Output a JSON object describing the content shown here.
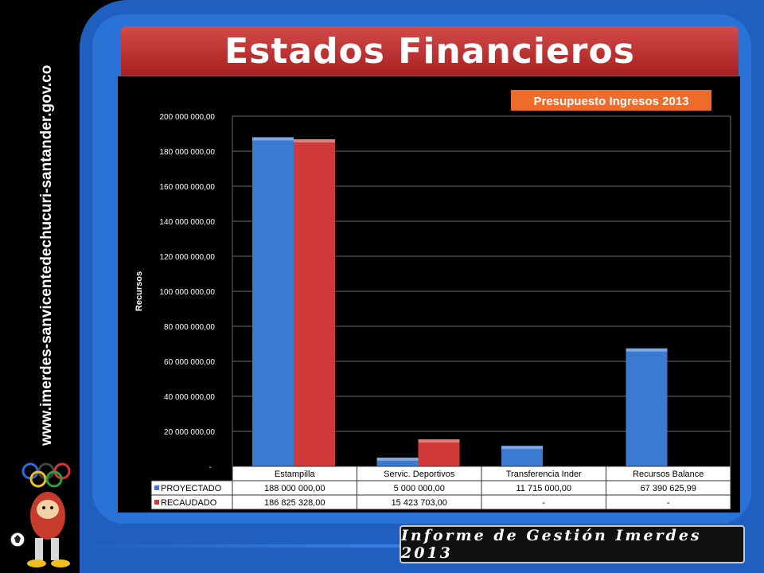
{
  "header": {
    "title": "Estados Financieros"
  },
  "side_url": "www.imerdes-sanvicentedechucuri-santander.gov.co",
  "footer": {
    "text": "Informe de Gestión Imerdes 2013"
  },
  "colors": {
    "proyectado": "#3b7ad1",
    "recaudado": "#d03a3a",
    "title_red": "#c03030",
    "frame_blue": "#2a72d6",
    "badge": "#ef6b2a"
  },
  "chart_data": {
    "type": "bar",
    "title": "Presupuesto Ingresos 2013",
    "ylabel": "Recursos",
    "xlabel": "",
    "categories": [
      "Estampilla",
      "Servic. Deportivos",
      "Transferencia Inder",
      "Recursos Balance"
    ],
    "series": [
      {
        "name": "PROYECTADO",
        "values": [
          188000000,
          5000000,
          11715000,
          67390625.99
        ],
        "labels": [
          "188 000 000,00",
          "5 000 000,00",
          "11 715 000,00",
          "67 390 625,99"
        ]
      },
      {
        "name": "RECAUDADO",
        "values": [
          186825328,
          15423703,
          0,
          0
        ],
        "labels": [
          "186 825 328,00",
          "15 423 703,00",
          "-",
          "-"
        ]
      }
    ],
    "ylim": [
      0,
      200000000
    ],
    "yticks": [
      "-",
      "20 000 000,00",
      "40 000 000,00",
      "60 000 000,00",
      "80 000 000,00",
      "100 000 000,00",
      "120 000 000,00",
      "140 000 000,00",
      "160 000 000,00",
      "180 000 000,00",
      "200 000 000,00"
    ],
    "grid": true,
    "legend": "data-table"
  }
}
